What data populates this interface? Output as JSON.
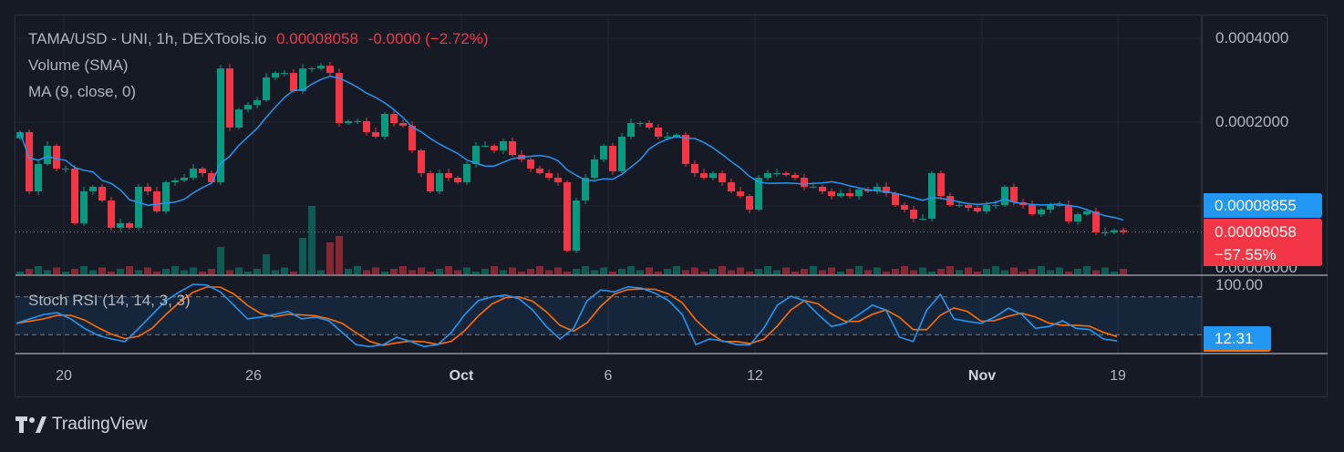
{
  "legend": {
    "symbol": "TAMA/USD - UNI, 1h, DEXTools.io",
    "last": "0.00008058",
    "change": "-0.0000",
    "change_pct": "(−2.72%)",
    "volume": "Volume (SMA)",
    "ma": "MA (9, close, 0)",
    "stoch": "Stoch RSI (14, 14, 3, 3)"
  },
  "price_axis": {
    "labels": [
      "0.0004000",
      "0.0002000",
      "0.00006000"
    ],
    "stoch_labels": [
      "100.00"
    ]
  },
  "tags": {
    "ma_value": "0.00008855",
    "last_price": "0.00008058",
    "last_change": "−57.55%",
    "stoch_value": "12.31"
  },
  "time_axis": [
    "20",
    "26",
    "Oct",
    "6",
    "12",
    "Nov",
    "19"
  ],
  "brand": "TradingView",
  "colors": {
    "up": "#089981",
    "down": "#f23645",
    "ma": "#2196f3",
    "k": "#2196f3",
    "d": "#ff6d00",
    "bg": "#161a25"
  },
  "chart_data": {
    "type": "candlestick",
    "scale": "log",
    "closes": [
      0.0001841,
      0.0001128,
      0.0001414,
      0.0001644,
      0.0001362,
      0.0001362,
      8.67e-05,
      0.0001128,
      0.0001172,
      0.0001046,
      8.35e-05,
      8.67e-05,
      8.35e-05,
      0.0001172,
      0.0001128,
      9.56e-05,
      0.0001216,
      0.0001235,
      0.0001263,
      0.0001362,
      0.0001311,
      0.0001216,
      0.0003118,
      0.0001912,
      0.0002221,
      0.0002307,
      0.0002396,
      0.0002894,
      0.0003003,
      0.0003003,
      0.0002584,
      0.0003118,
      0.0003118,
      0.0003189,
      0.0003003,
      0.0001985,
      0.0002016,
      0.0002016,
      0.0001841,
      0.0001773,
      0.000214,
      0.0001985,
      0.0001941,
      0.0001584,
      0.0001311,
      0.0001128,
      0.0001311,
      0.0001263,
      0.0001216,
      0.0001414,
      0.0001644,
      0.0001644,
      0.0001584,
      0.0001708,
      0.0001525,
      0.0001469,
      0.0001362,
      0.0001311,
      0.0001263,
      0.0001216,
      6.91e-05,
      0.0001046,
      0.0001263,
      0.0001469,
      0.0001644,
      0.0001332,
      0.0001773,
      0.0001985,
      0.0001985,
      0.0001912,
      0.0001773,
      0.0001773,
      0.00018,
      0.0001414,
      0.0001311,
      0.0001263,
      0.0001311,
      0.0001216,
      0.0001128,
      0.0001086,
      9.7e-05,
      0.0001263,
      0.0001311,
      0.0001311,
      0.0001292,
      0.0001263,
      0.0001172,
      0.0001172,
      0.0001128,
      0.0001086,
      0.0001111,
      0.0001086,
      0.0001145,
      0.0001128,
      0.0001172,
      0.0001111,
      0.0001008,
      9.7e-05,
      9e-05,
      9e-05,
      0.0001311,
      0.0001086,
      0.0001008,
      0.0001008,
      9.85e-05,
      9.56e-05,
      0.0001008,
      0.0001008,
      0.0001172,
      0.0001031,
      0.0001008,
      9.34e-05,
      9.7e-05,
      0.0001008,
      0.0001008,
      8.8e-05,
      9.34e-05,
      9.56e-05,
      8.04e-05,
      8.04e-05,
      8.18e-05,
      8.058e-05
    ],
    "volume_spikes": {
      "22": 30,
      "27": 22,
      "31": 40,
      "32": 75,
      "34": 35,
      "35": 42
    },
    "ma_period": 9,
    "price_ticks": [
      0.0004,
      0.0002,
      6e-05
    ],
    "stoch_k": [
      38,
      45,
      52,
      55,
      45,
      30,
      19,
      13,
      9,
      30,
      52,
      74,
      88,
      100,
      99,
      88,
      67,
      45,
      48,
      52,
      57,
      45,
      48,
      42,
      23,
      4,
      1,
      4,
      16,
      9,
      1,
      4,
      23,
      52,
      74,
      80,
      83,
      77,
      59,
      33,
      13,
      30,
      74,
      91,
      88,
      96,
      94,
      86,
      74,
      52,
      4,
      13,
      10,
      4,
      4,
      30,
      67,
      81,
      74,
      52,
      33,
      38,
      52,
      67,
      59,
      16,
      9,
      59,
      84,
      45,
      41,
      38,
      48,
      62,
      52,
      30,
      33,
      42,
      30,
      28,
      13,
      10
    ],
    "stoch_value": 12.31,
    "stoch_bands": [
      80,
      20
    ]
  }
}
